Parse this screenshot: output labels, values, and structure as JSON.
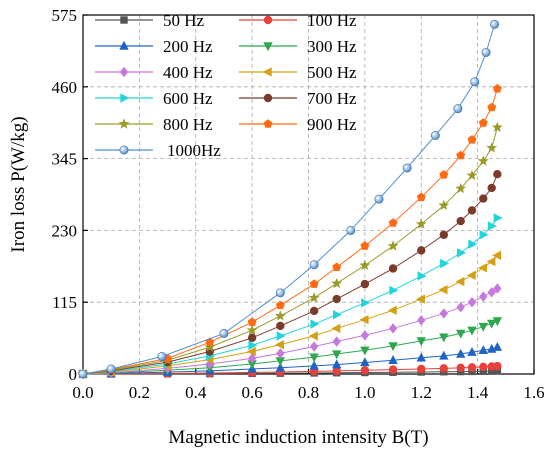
{
  "chart_data": {
    "type": "line",
    "title": "",
    "xlabel": "Magnetic induction intensity B(T)",
    "ylabel": "Iron loss P(W/kg)",
    "xlim": [
      0.0,
      1.6
    ],
    "ylim": [
      0,
      575
    ],
    "xticks": [
      "0.0",
      "0.2",
      "0.4",
      "0.6",
      "0.8",
      "1.0",
      "1.2",
      "1.4",
      "1.6"
    ],
    "yticks": [
      "0",
      "115",
      "230",
      "345",
      "460",
      "575"
    ],
    "grid": true,
    "legend_position": "top-left",
    "series": [
      {
        "name": " 50  Hz",
        "color": "#555555",
        "marker": "square",
        "points": [
          [
            0.0,
            0
          ],
          [
            0.1,
            0.1
          ],
          [
            0.3,
            0.3
          ],
          [
            0.45,
            0.6
          ],
          [
            0.6,
            1.0
          ],
          [
            0.7,
            1.3
          ],
          [
            0.82,
            1.7
          ],
          [
            0.9,
            2.0
          ],
          [
            1.0,
            2.4
          ],
          [
            1.1,
            2.8
          ],
          [
            1.2,
            3.2
          ],
          [
            1.28,
            3.6
          ],
          [
            1.34,
            3.9
          ],
          [
            1.38,
            4.1
          ],
          [
            1.42,
            4.4
          ],
          [
            1.45,
            4.6
          ],
          [
            1.47,
            4.8
          ]
        ]
      },
      {
        "name": "100 Hz",
        "color": "#e8403a",
        "marker": "circle",
        "points": [
          [
            0.0,
            0
          ],
          [
            0.1,
            0.3
          ],
          [
            0.3,
            0.9
          ],
          [
            0.45,
            1.6
          ],
          [
            0.6,
            2.6
          ],
          [
            0.7,
            3.3
          ],
          [
            0.82,
            4.3
          ],
          [
            0.9,
            5.0
          ],
          [
            1.0,
            6.0
          ],
          [
            1.1,
            7.0
          ],
          [
            1.2,
            8.1
          ],
          [
            1.28,
            9.0
          ],
          [
            1.34,
            9.9
          ],
          [
            1.38,
            10.6
          ],
          [
            1.42,
            11.4
          ],
          [
            1.45,
            12.1
          ],
          [
            1.47,
            12.6
          ]
        ]
      },
      {
        "name": "200 Hz",
        "color": "#1e64c8",
        "marker": "triangle-up",
        "points": [
          [
            0.0,
            0
          ],
          [
            0.1,
            0.8
          ],
          [
            0.3,
            3
          ],
          [
            0.45,
            5
          ],
          [
            0.6,
            8
          ],
          [
            0.7,
            10
          ],
          [
            0.82,
            13
          ],
          [
            0.9,
            15
          ],
          [
            1.0,
            18.5
          ],
          [
            1.1,
            22
          ],
          [
            1.2,
            26
          ],
          [
            1.28,
            29
          ],
          [
            1.34,
            32
          ],
          [
            1.38,
            35
          ],
          [
            1.42,
            38
          ],
          [
            1.45,
            40
          ],
          [
            1.47,
            43
          ]
        ]
      },
      {
        "name": "300 Hz",
        "color": "#2ea84f",
        "marker": "triangle-down",
        "points": [
          [
            0.0,
            0
          ],
          [
            0.1,
            1.5
          ],
          [
            0.3,
            6
          ],
          [
            0.45,
            10
          ],
          [
            0.6,
            16
          ],
          [
            0.7,
            21
          ],
          [
            0.82,
            27
          ],
          [
            0.9,
            32
          ],
          [
            1.0,
            38
          ],
          [
            1.1,
            45
          ],
          [
            1.2,
            53
          ],
          [
            1.28,
            59
          ],
          [
            1.34,
            65
          ],
          [
            1.38,
            70
          ],
          [
            1.42,
            76
          ],
          [
            1.45,
            81
          ],
          [
            1.47,
            85
          ]
        ]
      },
      {
        "name": "400 Hz",
        "color": "#c678dd",
        "marker": "diamond",
        "points": [
          [
            0.0,
            0
          ],
          [
            0.1,
            2
          ],
          [
            0.3,
            9
          ],
          [
            0.45,
            16
          ],
          [
            0.6,
            25
          ],
          [
            0.7,
            33
          ],
          [
            0.82,
            44
          ],
          [
            0.9,
            52
          ],
          [
            1.0,
            62
          ],
          [
            1.1,
            73
          ],
          [
            1.2,
            86
          ],
          [
            1.28,
            97
          ],
          [
            1.34,
            107
          ],
          [
            1.38,
            115
          ],
          [
            1.42,
            124
          ],
          [
            1.45,
            131
          ],
          [
            1.47,
            137
          ]
        ]
      },
      {
        "name": "500 Hz",
        "color": "#d4a017",
        "marker": "triangle-left",
        "points": [
          [
            0.0,
            0
          ],
          [
            0.1,
            3
          ],
          [
            0.3,
            13
          ],
          [
            0.45,
            23
          ],
          [
            0.6,
            36
          ],
          [
            0.7,
            47
          ],
          [
            0.82,
            61
          ],
          [
            0.9,
            73
          ],
          [
            1.0,
            87
          ],
          [
            1.1,
            102
          ],
          [
            1.2,
            120
          ],
          [
            1.28,
            135
          ],
          [
            1.34,
            148
          ],
          [
            1.38,
            158
          ],
          [
            1.42,
            170
          ],
          [
            1.45,
            180
          ],
          [
            1.47,
            190
          ]
        ]
      },
      {
        "name": "600 Hz",
        "color": "#21d4dc",
        "marker": "triangle-right",
        "points": [
          [
            0.0,
            0
          ],
          [
            0.1,
            4
          ],
          [
            0.3,
            16
          ],
          [
            0.45,
            29
          ],
          [
            0.6,
            46
          ],
          [
            0.7,
            61
          ],
          [
            0.82,
            80
          ],
          [
            0.9,
            95
          ],
          [
            1.0,
            114
          ],
          [
            1.1,
            134
          ],
          [
            1.2,
            157
          ],
          [
            1.28,
            177
          ],
          [
            1.34,
            194
          ],
          [
            1.38,
            208
          ],
          [
            1.42,
            223
          ],
          [
            1.45,
            237
          ],
          [
            1.47,
            250
          ]
        ]
      },
      {
        "name": "700 Hz",
        "color": "#7b3b2a",
        "marker": "circle",
        "points": [
          [
            0.0,
            0
          ],
          [
            0.1,
            5
          ],
          [
            0.3,
            19
          ],
          [
            0.45,
            36
          ],
          [
            0.6,
            58
          ],
          [
            0.7,
            77
          ],
          [
            0.82,
            101
          ],
          [
            0.9,
            120
          ],
          [
            1.0,
            144
          ],
          [
            1.1,
            169
          ],
          [
            1.2,
            198
          ],
          [
            1.28,
            223
          ],
          [
            1.34,
            245
          ],
          [
            1.38,
            262
          ],
          [
            1.42,
            281
          ],
          [
            1.45,
            298
          ],
          [
            1.47,
            320
          ]
        ]
      },
      {
        "name": "800 Hz",
        "color": "#9a9a28",
        "marker": "star",
        "points": [
          [
            0.0,
            0
          ],
          [
            0.1,
            6
          ],
          [
            0.3,
            22
          ],
          [
            0.45,
            43
          ],
          [
            0.6,
            70
          ],
          [
            0.7,
            93
          ],
          [
            0.82,
            122
          ],
          [
            0.9,
            145
          ],
          [
            1.0,
            174
          ],
          [
            1.1,
            205
          ],
          [
            1.2,
            240
          ],
          [
            1.28,
            270
          ],
          [
            1.34,
            297
          ],
          [
            1.38,
            318
          ],
          [
            1.42,
            341
          ],
          [
            1.45,
            362
          ],
          [
            1.47,
            395
          ]
        ]
      },
      {
        "name": "900 Hz",
        "color": "#ff6a13",
        "marker": "pentagon",
        "points": [
          [
            0.0,
            0
          ],
          [
            0.1,
            7
          ],
          [
            0.3,
            25
          ],
          [
            0.45,
            51
          ],
          [
            0.6,
            83
          ],
          [
            0.7,
            110
          ],
          [
            0.82,
            144
          ],
          [
            0.9,
            171
          ],
          [
            1.0,
            205
          ],
          [
            1.1,
            242
          ],
          [
            1.2,
            283
          ],
          [
            1.28,
            319
          ],
          [
            1.34,
            350
          ],
          [
            1.38,
            375
          ],
          [
            1.42,
            402
          ],
          [
            1.45,
            427
          ],
          [
            1.47,
            457
          ]
        ]
      },
      {
        "name": "1000Hz",
        "color": "#4f8fcf",
        "marker": "sphere",
        "points": [
          [
            0.0,
            0
          ],
          [
            0.1,
            8
          ],
          [
            0.28,
            28
          ],
          [
            0.5,
            65
          ],
          [
            0.7,
            130
          ],
          [
            0.82,
            175
          ],
          [
            0.95,
            230
          ],
          [
            1.05,
            280
          ],
          [
            1.15,
            330
          ],
          [
            1.25,
            382
          ],
          [
            1.33,
            425
          ],
          [
            1.39,
            468
          ],
          [
            1.43,
            515
          ],
          [
            1.46,
            560
          ]
        ]
      }
    ]
  }
}
